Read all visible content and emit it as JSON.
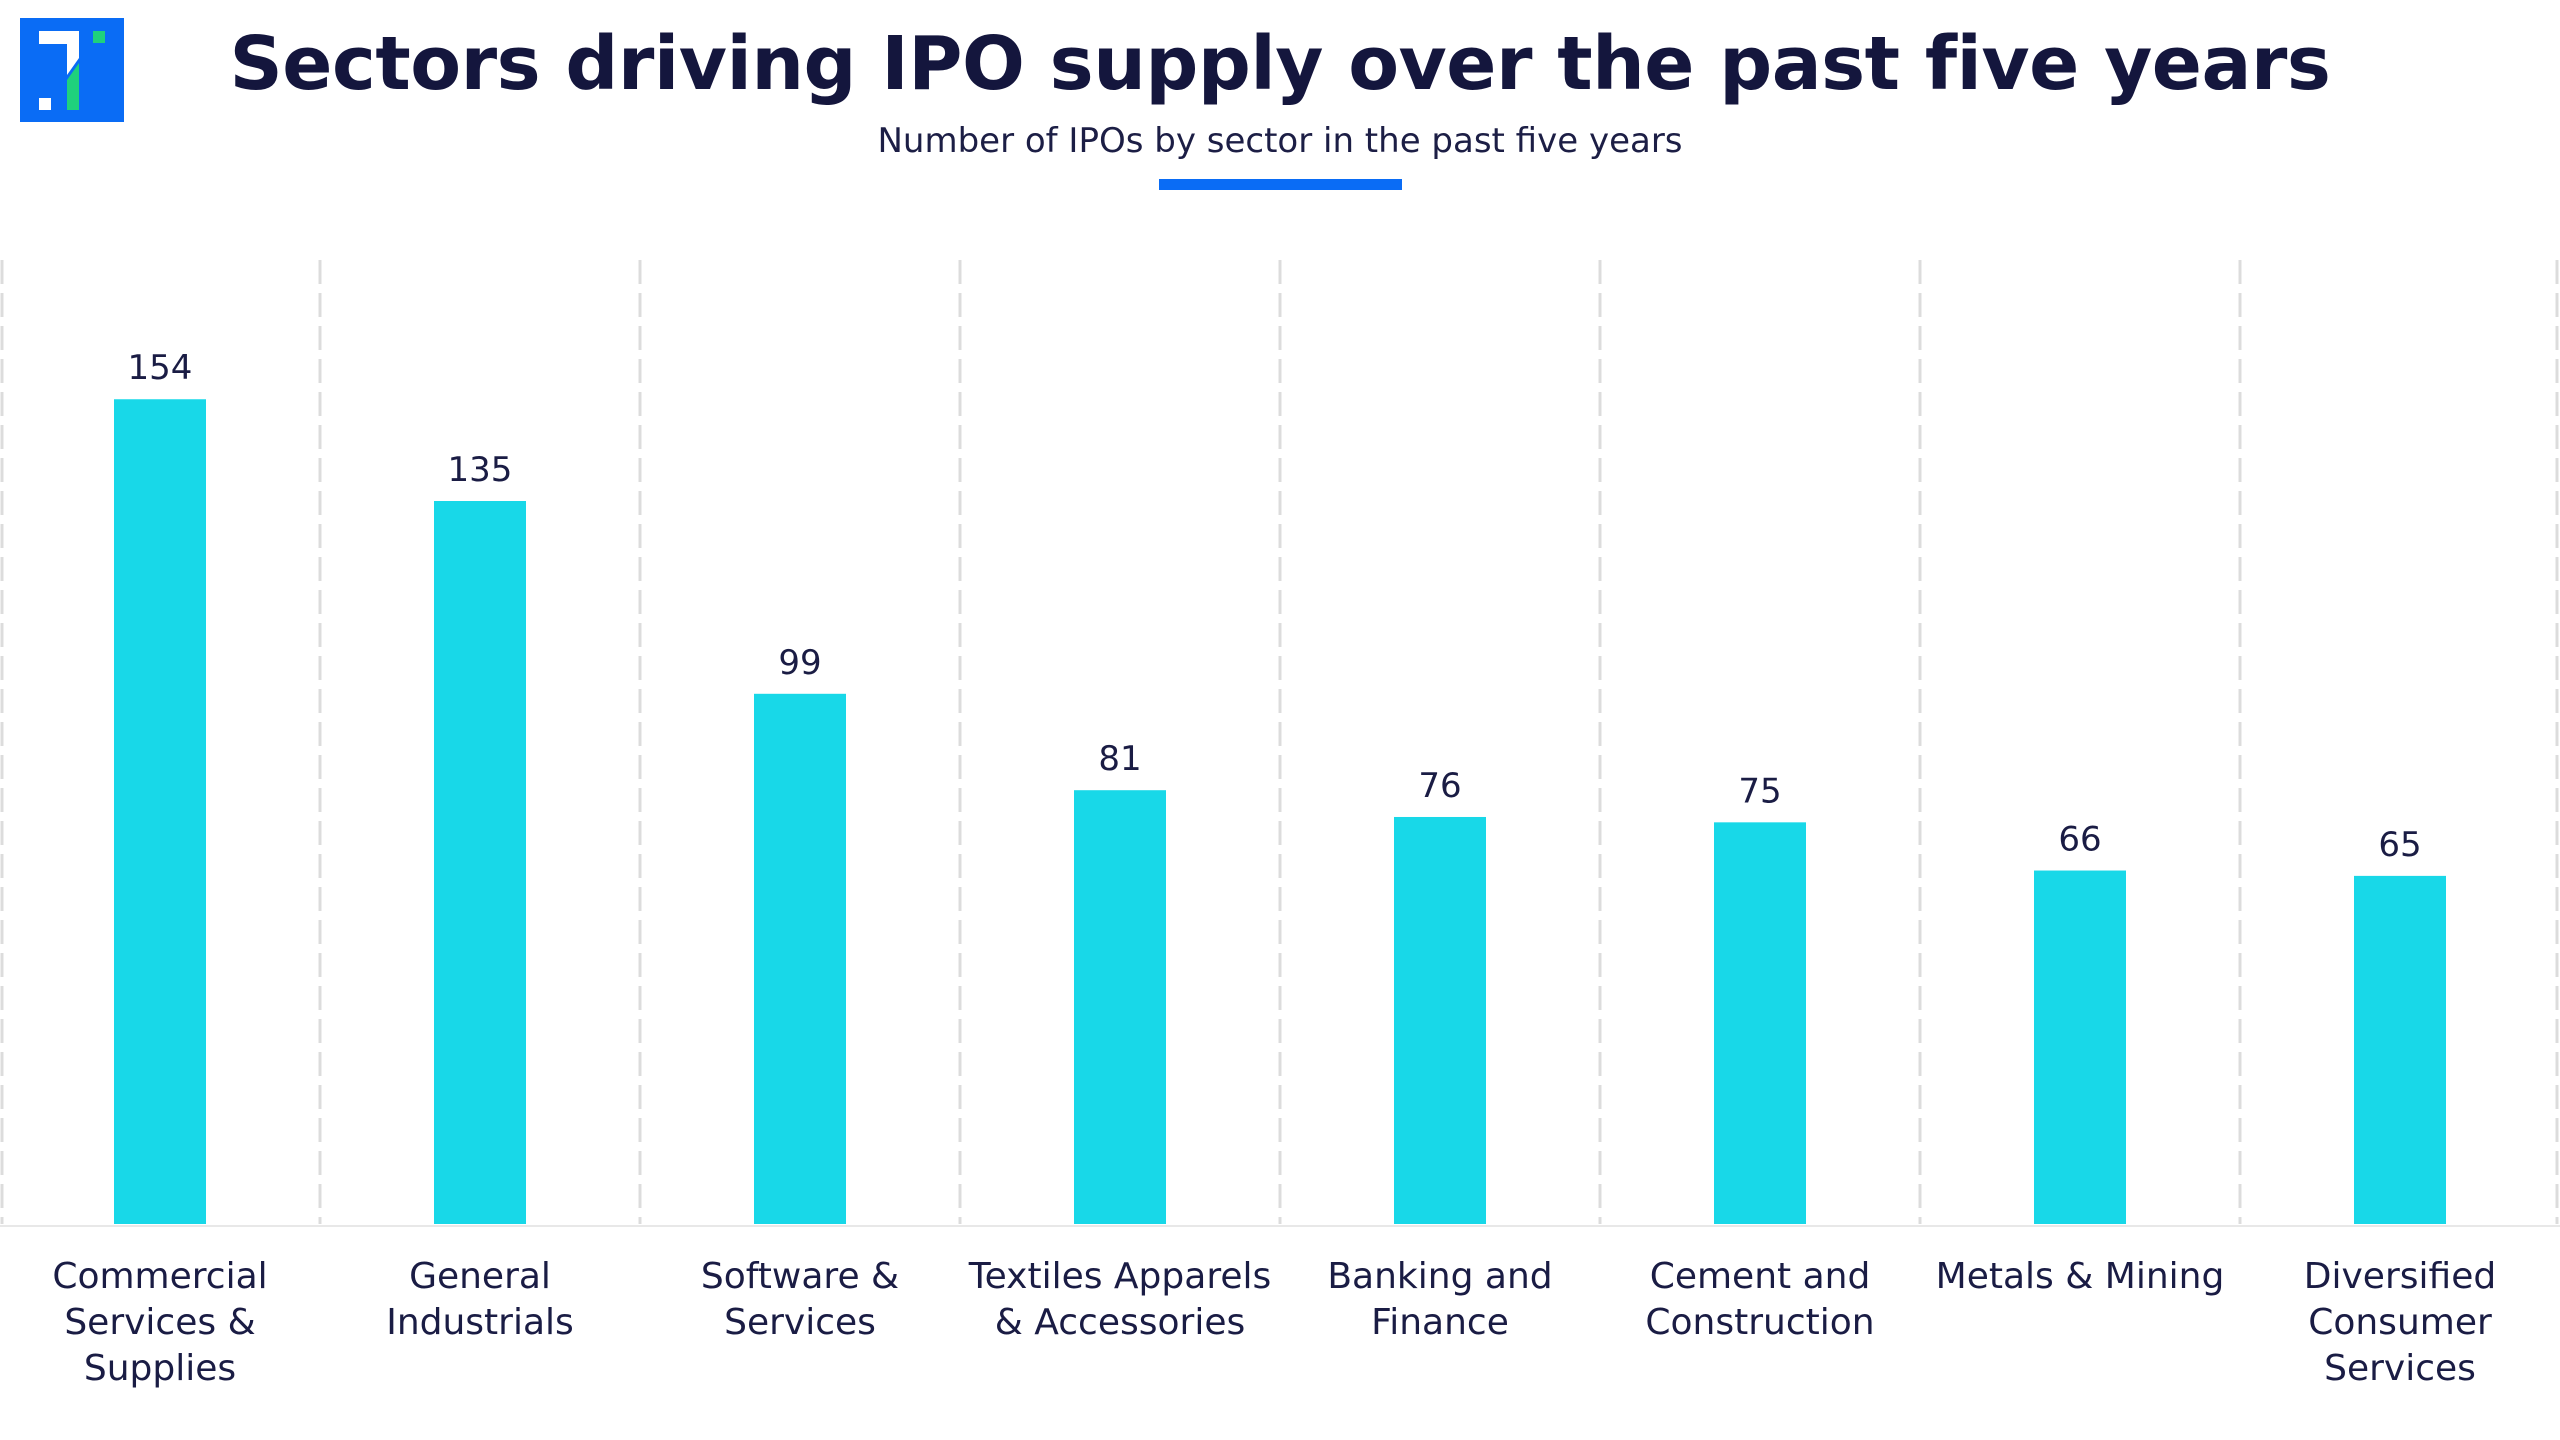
{
  "header": {
    "logo": "brand-logo",
    "title": "Sectors driving IPO supply over the past five years",
    "subtitle": "Number of IPOs by sector in the past five years"
  },
  "colors": {
    "bar": "#18d8e8",
    "text": "#14163d",
    "accent": "#0a6cf5",
    "logo_bg": "#0a6cf5",
    "logo_green": "#1fd17c",
    "gridline": "#dcdcdc"
  },
  "chart_data": {
    "type": "bar",
    "title": "Sectors driving IPO supply over the past five years",
    "subtitle": "Number of IPOs by sector in the past five years",
    "xlabel": "",
    "ylabel": "",
    "ylim": [
      0,
      180
    ],
    "grid": "vertical dashed separators between categories",
    "legend": "none",
    "data_labels": true,
    "categories": [
      [
        "Commercial",
        "Services &",
        "Supplies"
      ],
      [
        "General",
        "Industrials"
      ],
      [
        "Software &",
        "Services"
      ],
      [
        "Textiles Apparels",
        "& Accessories"
      ],
      [
        "Banking and",
        "Finance"
      ],
      [
        "Cement and",
        "Construction"
      ],
      [
        "Metals & Mining"
      ],
      [
        "Diversified",
        "Consumer",
        "Services"
      ]
    ],
    "category_names": [
      "Commercial Services & Supplies",
      "General Industrials",
      "Software & Services",
      "Textiles Apparels & Accessories",
      "Banking and Finance",
      "Cement and Construction",
      "Metals & Mining",
      "Diversified Consumer Services"
    ],
    "values": [
      154,
      135,
      99,
      81,
      76,
      75,
      66,
      65
    ]
  }
}
